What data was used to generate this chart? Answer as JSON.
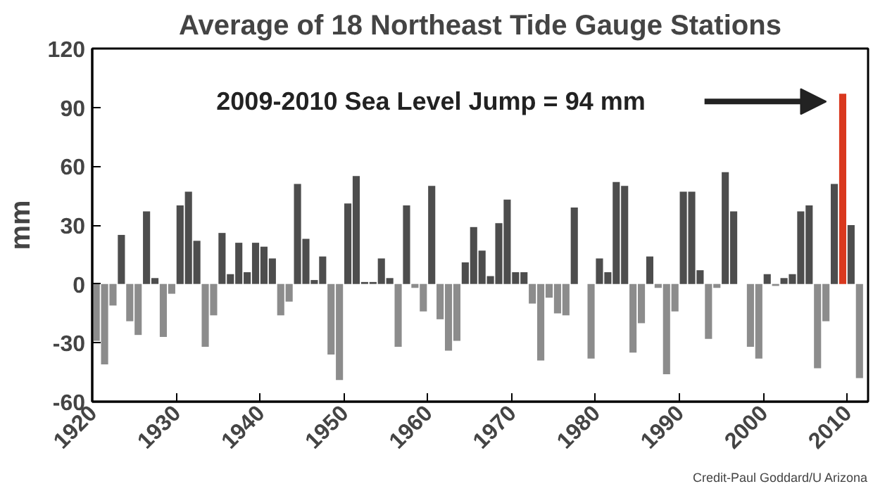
{
  "chart_data": {
    "type": "bar",
    "title": "Average of 18 Northeast Tide Gauge Stations",
    "ylabel": "mm",
    "x": [
      1920,
      1921,
      1922,
      1923,
      1924,
      1925,
      1926,
      1927,
      1928,
      1929,
      1930,
      1931,
      1932,
      1933,
      1934,
      1935,
      1936,
      1937,
      1938,
      1939,
      1940,
      1941,
      1942,
      1943,
      1944,
      1945,
      1946,
      1947,
      1948,
      1949,
      1950,
      1951,
      1952,
      1953,
      1954,
      1955,
      1956,
      1957,
      1958,
      1959,
      1960,
      1961,
      1962,
      1963,
      1964,
      1965,
      1966,
      1967,
      1968,
      1969,
      1970,
      1971,
      1972,
      1973,
      1974,
      1975,
      1976,
      1977,
      1978,
      1979,
      1980,
      1981,
      1982,
      1983,
      1984,
      1985,
      1986,
      1987,
      1988,
      1989,
      1990,
      1991,
      1992,
      1993,
      1994,
      1995,
      1996,
      1997,
      1998,
      1999,
      2000,
      2001,
      2002,
      2003,
      2004,
      2005,
      2006,
      2007,
      2008,
      2009,
      2010,
      2011
    ],
    "values": [
      -29,
      -41,
      -11,
      25,
      -19,
      -26,
      37,
      3,
      -27,
      -5,
      40,
      47,
      22,
      -32,
      -16,
      26,
      5,
      21,
      6,
      21,
      19,
      13,
      -16,
      -9,
      51,
      23,
      2,
      14,
      -36,
      -49,
      41,
      55,
      1,
      1,
      13,
      3,
      -32,
      40,
      -2,
      -14,
      50,
      -18,
      -34,
      -29,
      11,
      29,
      17,
      4,
      31,
      43,
      6,
      6,
      -10,
      -39,
      -7,
      -15,
      -16,
      39,
      0,
      -38,
      13,
      6,
      52,
      50,
      -35,
      -20,
      14,
      -2,
      -46,
      -14,
      47,
      47,
      7,
      -28,
      -2,
      57,
      37,
      0,
      -32,
      -38,
      5,
      -1,
      3,
      5,
      37,
      40,
      -43,
      -19,
      51,
      97,
      30,
      -48
    ],
    "colors": [
      "#8c8c8c",
      "#8c8c8c",
      "#8c8c8c",
      "#4d4d4d",
      "#8c8c8c",
      "#8c8c8c",
      "#4d4d4d",
      "#4d4d4d",
      "#8c8c8c",
      "#8c8c8c",
      "#4d4d4d",
      "#4d4d4d",
      "#4d4d4d",
      "#8c8c8c",
      "#8c8c8c",
      "#4d4d4d",
      "#4d4d4d",
      "#4d4d4d",
      "#4d4d4d",
      "#4d4d4d",
      "#4d4d4d",
      "#4d4d4d",
      "#8c8c8c",
      "#8c8c8c",
      "#4d4d4d",
      "#4d4d4d",
      "#4d4d4d",
      "#4d4d4d",
      "#8c8c8c",
      "#8c8c8c",
      "#4d4d4d",
      "#4d4d4d",
      "#4d4d4d",
      "#4d4d4d",
      "#4d4d4d",
      "#4d4d4d",
      "#8c8c8c",
      "#4d4d4d",
      "#8c8c8c",
      "#8c8c8c",
      "#4d4d4d",
      "#8c8c8c",
      "#8c8c8c",
      "#8c8c8c",
      "#4d4d4d",
      "#4d4d4d",
      "#4d4d4d",
      "#4d4d4d",
      "#4d4d4d",
      "#4d4d4d",
      "#4d4d4d",
      "#4d4d4d",
      "#8c8c8c",
      "#8c8c8c",
      "#8c8c8c",
      "#8c8c8c",
      "#8c8c8c",
      "#4d4d4d",
      "#8c8c8c",
      "#8c8c8c",
      "#4d4d4d",
      "#4d4d4d",
      "#4d4d4d",
      "#4d4d4d",
      "#8c8c8c",
      "#8c8c8c",
      "#4d4d4d",
      "#8c8c8c",
      "#8c8c8c",
      "#8c8c8c",
      "#4d4d4d",
      "#4d4d4d",
      "#4d4d4d",
      "#8c8c8c",
      "#8c8c8c",
      "#4d4d4d",
      "#4d4d4d",
      "#8c8c8c",
      "#8c8c8c",
      "#8c8c8c",
      "#4d4d4d",
      "#8c8c8c",
      "#4d4d4d",
      "#4d4d4d",
      "#4d4d4d",
      "#4d4d4d",
      "#8c8c8c",
      "#8c8c8c",
      "#4d4d4d",
      "#d9381e",
      "#4d4d4d",
      "#8c8c8c"
    ],
    "xlim": [
      1920,
      2012.5
    ],
    "xticks": [
      1920,
      1930,
      1940,
      1950,
      1960,
      1970,
      1980,
      1990,
      2000,
      2010
    ],
    "ylim": [
      -60,
      120
    ],
    "yticks": [
      -60,
      -30,
      0,
      30,
      60,
      90,
      120
    ],
    "grid": false,
    "annotations": [
      "2009-2010 Sea Level Jump = 94 mm",
      "Credit-Paul Goddard/U Arizona"
    ]
  }
}
